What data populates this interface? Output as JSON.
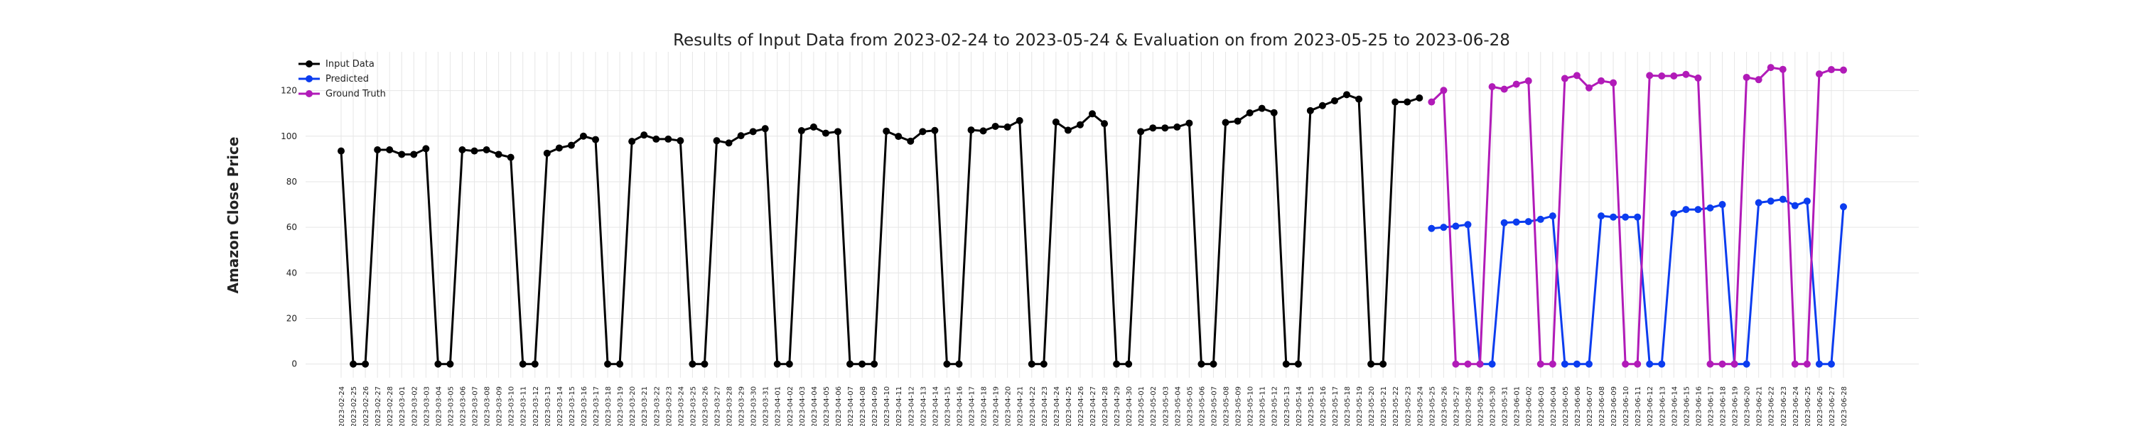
{
  "chart_data": {
    "type": "line",
    "title": "Results of Input Data from 2023-02-24 to 2023-05-24 & Evaluation on from 2023-05-25 to 2023-06-28",
    "y_label": "Amazon Close Price",
    "categories": [
      "2023-02-24",
      "2023-02-25",
      "2023-02-26",
      "2023-02-27",
      "2023-02-28",
      "2023-03-01",
      "2023-03-02",
      "2023-03-03",
      "2023-03-04",
      "2023-03-05",
      "2023-03-06",
      "2023-03-07",
      "2023-03-08",
      "2023-03-09",
      "2023-03-10",
      "2023-03-11",
      "2023-03-12",
      "2023-03-13",
      "2023-03-14",
      "2023-03-15",
      "2023-03-16",
      "2023-03-17",
      "2023-03-18",
      "2023-03-19",
      "2023-03-20",
      "2023-03-21",
      "2023-03-22",
      "2023-03-23",
      "2023-03-24",
      "2023-03-25",
      "2023-03-26",
      "2023-03-27",
      "2023-03-28",
      "2023-03-29",
      "2023-03-30",
      "2023-03-31",
      "2023-04-01",
      "2023-04-02",
      "2023-04-03",
      "2023-04-04",
      "2023-04-05",
      "2023-04-06",
      "2023-04-07",
      "2023-04-08",
      "2023-04-09",
      "2023-04-10",
      "2023-04-11",
      "2023-04-12",
      "2023-04-13",
      "2023-04-14",
      "2023-04-15",
      "2023-04-16",
      "2023-04-17",
      "2023-04-18",
      "2023-04-19",
      "2023-04-20",
      "2023-04-21",
      "2023-04-22",
      "2023-04-23",
      "2023-04-24",
      "2023-04-25",
      "2023-04-26",
      "2023-04-27",
      "2023-04-28",
      "2023-04-29",
      "2023-04-30",
      "2023-05-01",
      "2023-05-02",
      "2023-05-03",
      "2023-05-04",
      "2023-05-05",
      "2023-05-06",
      "2023-05-07",
      "2023-05-08",
      "2023-05-09",
      "2023-05-10",
      "2023-05-11",
      "2023-05-12",
      "2023-05-13",
      "2023-05-14",
      "2023-05-15",
      "2023-05-16",
      "2023-05-17",
      "2023-05-18",
      "2023-05-19",
      "2023-05-20",
      "2023-05-21",
      "2023-05-22",
      "2023-05-23",
      "2023-05-24",
      "2023-05-25",
      "2023-05-26",
      "2023-05-27",
      "2023-05-28",
      "2023-05-29",
      "2023-05-30",
      "2023-05-31",
      "2023-06-01",
      "2023-06-02",
      "2023-06-03",
      "2023-06-04",
      "2023-06-05",
      "2023-06-06",
      "2023-06-07",
      "2023-06-08",
      "2023-06-09",
      "2023-06-10",
      "2023-06-11",
      "2023-06-12",
      "2023-06-13",
      "2023-06-14",
      "2023-06-15",
      "2023-06-16",
      "2023-06-17",
      "2023-06-18",
      "2023-06-19",
      "2023-06-20",
      "2023-06-21",
      "2023-06-22",
      "2023-06-23",
      "2023-06-24",
      "2023-06-25",
      "2023-06-26",
      "2023-06-27",
      "2023-06-28"
    ],
    "series": [
      {
        "name": "Input Data",
        "color": "#000000",
        "values": [
          93.5,
          0,
          0,
          94,
          94,
          92,
          92,
          94.5,
          0,
          0,
          94,
          93.5,
          94,
          92,
          90.7,
          0,
          0,
          92.5,
          94.8,
          96,
          100,
          98.5,
          0,
          0,
          97.7,
          100.5,
          98.7,
          98.7,
          98,
          0,
          0,
          98,
          97,
          100.2,
          102,
          103.3,
          0,
          0,
          102.4,
          104,
          101.3,
          102,
          0,
          0,
          0,
          102.2,
          99.9,
          97.8,
          102,
          102.5,
          0,
          0,
          102.7,
          102.3,
          104.3,
          104,
          106.8,
          0,
          0,
          106.2,
          102.6,
          105,
          109.8,
          105.5,
          0,
          0,
          102,
          103.6,
          103.6,
          104,
          105.7,
          0,
          0,
          106,
          106.6,
          110.2,
          112.2,
          110.3,
          0,
          0,
          111.2,
          113.4,
          115.5,
          118.2,
          116.25,
          0,
          0,
          115,
          115,
          116.75,
          null,
          null,
          null,
          null,
          null,
          null,
          null,
          null,
          null,
          null,
          null,
          null,
          null,
          null,
          null,
          null,
          null,
          null,
          null,
          null,
          null,
          null,
          null,
          null,
          null,
          null,
          null,
          null,
          null,
          null,
          null,
          null,
          null,
          null,
          null
        ]
      },
      {
        "name": "Predicted",
        "color": "#0b3cef",
        "values": [
          null,
          null,
          null,
          null,
          null,
          null,
          null,
          null,
          null,
          null,
          null,
          null,
          null,
          null,
          null,
          null,
          null,
          null,
          null,
          null,
          null,
          null,
          null,
          null,
          null,
          null,
          null,
          null,
          null,
          null,
          null,
          null,
          null,
          null,
          null,
          null,
          null,
          null,
          null,
          null,
          null,
          null,
          null,
          null,
          null,
          null,
          null,
          null,
          null,
          null,
          null,
          null,
          null,
          null,
          null,
          null,
          null,
          null,
          null,
          null,
          null,
          null,
          null,
          null,
          null,
          null,
          null,
          null,
          null,
          null,
          null,
          null,
          null,
          null,
          null,
          null,
          null,
          null,
          null,
          null,
          null,
          null,
          null,
          null,
          null,
          null,
          null,
          null,
          null,
          null,
          59.5,
          60,
          60.5,
          61.2,
          0,
          0,
          62,
          62.3,
          62.5,
          63.5,
          65,
          0,
          0,
          0,
          65,
          64.5,
          64.5,
          64.5,
          0,
          0,
          66,
          67.8,
          67.8,
          68.5,
          70,
          0,
          0,
          70.8,
          71.5,
          72.3,
          69.5,
          71.5,
          0,
          0,
          69
        ]
      },
      {
        "name": "Ground Truth",
        "color": "#b11bb8",
        "values": [
          null,
          null,
          null,
          null,
          null,
          null,
          null,
          null,
          null,
          null,
          null,
          null,
          null,
          null,
          null,
          null,
          null,
          null,
          null,
          null,
          null,
          null,
          null,
          null,
          null,
          null,
          null,
          null,
          null,
          null,
          null,
          null,
          null,
          null,
          null,
          null,
          null,
          null,
          null,
          null,
          null,
          null,
          null,
          null,
          null,
          null,
          null,
          null,
          null,
          null,
          null,
          null,
          null,
          null,
          null,
          null,
          null,
          null,
          null,
          null,
          null,
          null,
          null,
          null,
          null,
          null,
          null,
          null,
          null,
          null,
          null,
          null,
          null,
          null,
          null,
          null,
          null,
          null,
          null,
          null,
          null,
          null,
          null,
          null,
          null,
          null,
          null,
          null,
          null,
          null,
          115,
          120.1,
          0,
          0,
          0,
          121.7,
          120.6,
          122.8,
          124.25,
          0,
          0,
          125.3,
          126.6,
          121.2,
          124.25,
          123.4,
          0,
          0,
          126.6,
          126.4,
          126.4,
          127.1,
          125.5,
          0,
          0,
          0,
          125.8,
          124.8,
          130.1,
          129.3,
          0,
          0,
          127.3,
          129.2,
          129
        ]
      }
    ],
    "ylim": [
      -6,
      137
    ],
    "yticks": [
      0,
      20,
      40,
      60,
      80,
      100,
      120
    ],
    "grid": true,
    "legend": "upper left"
  }
}
